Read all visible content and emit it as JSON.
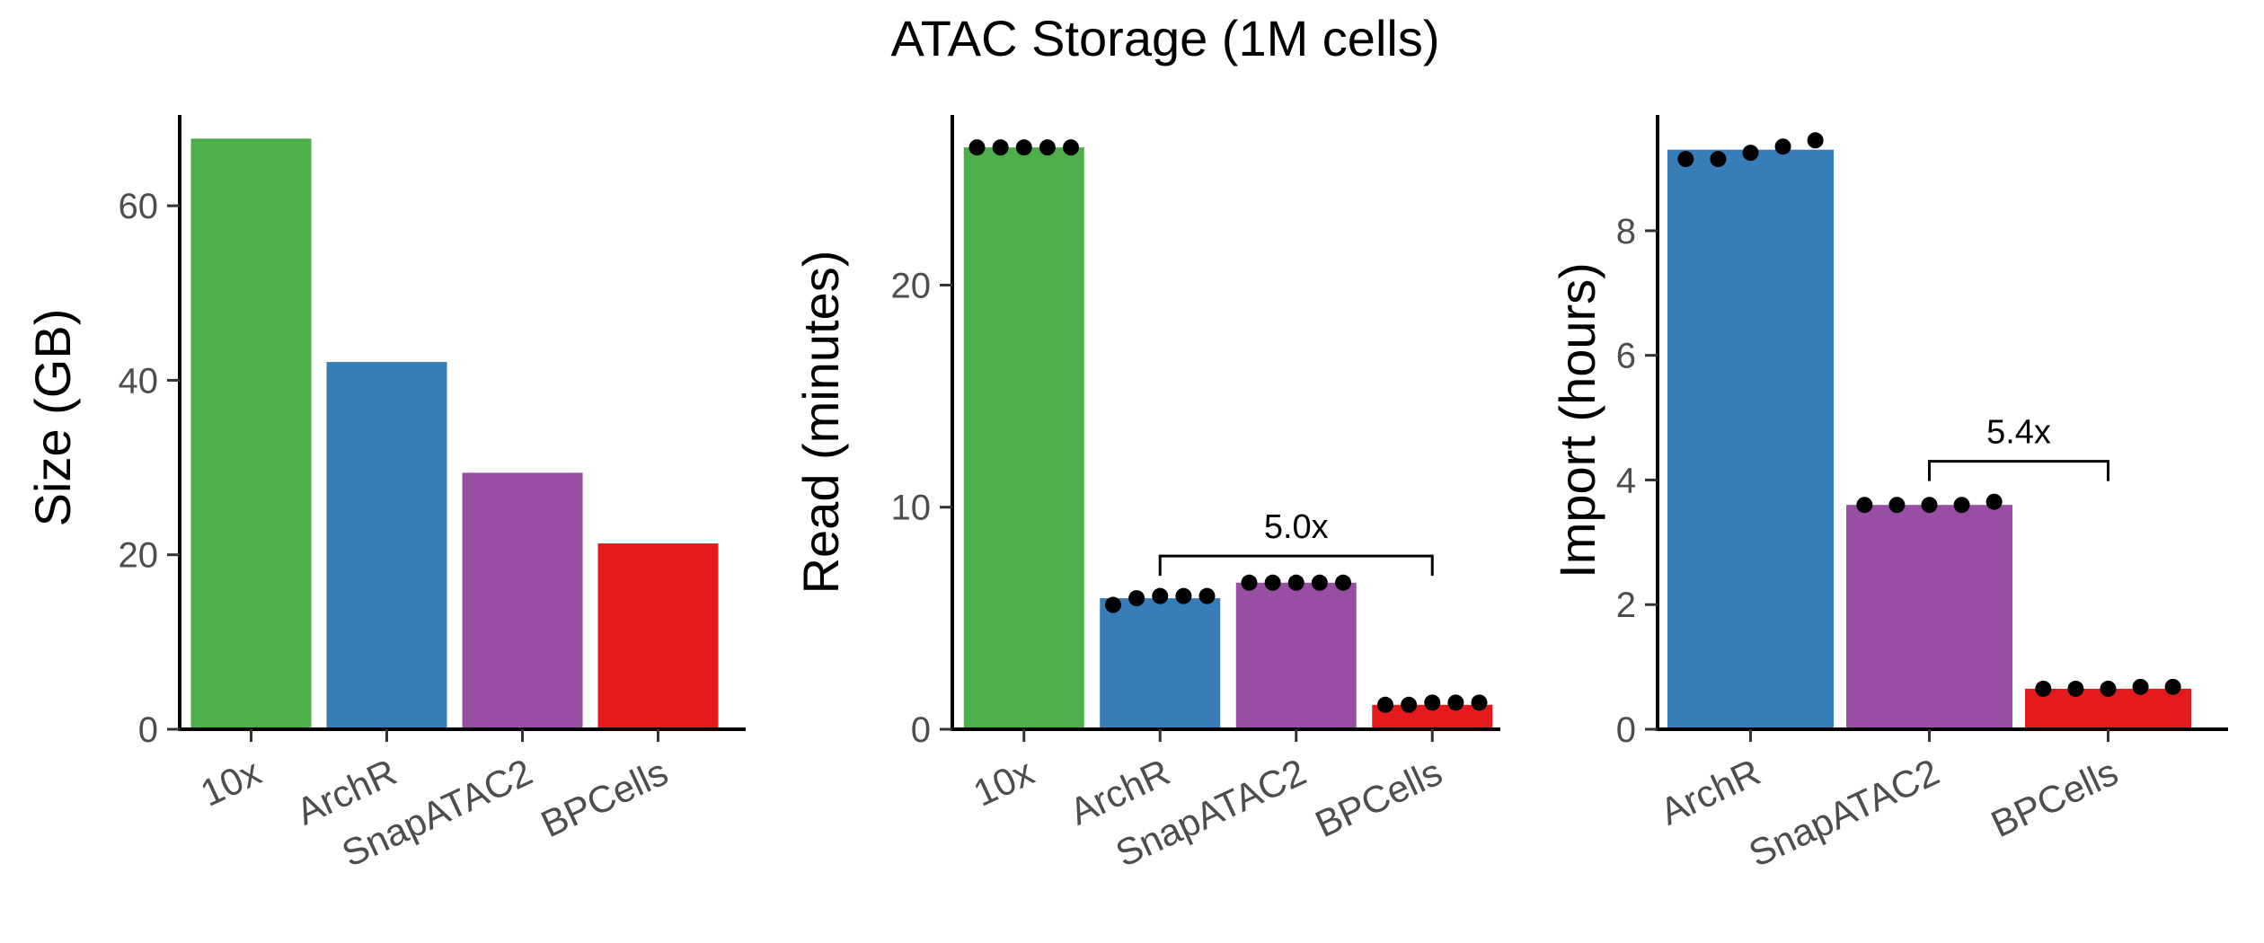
{
  "figure_title": "ATAC Storage (1M cells)",
  "colors": {
    "10x": "#4DAF4A",
    "ArchR": "#377EB8",
    "SnapATAC2": "#984EA3",
    "BPCells": "#E41A1C"
  },
  "chart_data": [
    {
      "type": "bar",
      "ylabel": "Size (GB)",
      "categories": [
        "10x",
        "ArchR",
        "SnapATAC2",
        "BPCells"
      ],
      "values": [
        67.7,
        42.1,
        29.4,
        21.3
      ],
      "ylim": [
        0,
        70
      ],
      "yticks": [
        0,
        20,
        40,
        60
      ],
      "points": []
    },
    {
      "type": "bar",
      "ylabel": "Read (minutes)",
      "categories": [
        "10x",
        "ArchR",
        "SnapATAC2",
        "BPCells"
      ],
      "values": [
        26.2,
        5.9,
        6.6,
        1.1
      ],
      "ylim": [
        0,
        27.5
      ],
      "yticks": [
        0,
        10,
        20
      ],
      "points": [
        [
          26.2,
          26.2,
          26.2,
          26.2,
          26.2
        ],
        [
          5.6,
          5.9,
          6.0,
          6.0,
          6.0
        ],
        [
          6.6,
          6.6,
          6.6,
          6.6,
          6.6
        ],
        [
          1.1,
          1.1,
          1.2,
          1.2,
          1.2
        ]
      ],
      "annotation": {
        "from": "ArchR",
        "to": "BPCells",
        "level": 7.8,
        "label": "5.0x"
      }
    },
    {
      "type": "bar",
      "ylabel": "Import (hours)",
      "categories": [
        "ArchR",
        "SnapATAC2",
        "BPCells"
      ],
      "values": [
        9.3,
        3.6,
        0.65
      ],
      "ylim": [
        0,
        9.8
      ],
      "yticks": [
        0,
        2,
        4,
        6,
        8
      ],
      "points": [
        [
          9.15,
          9.15,
          9.25,
          9.35,
          9.45
        ],
        [
          3.6,
          3.6,
          3.6,
          3.6,
          3.65
        ],
        [
          0.65,
          0.65,
          0.65,
          0.68,
          0.68
        ]
      ],
      "annotation": {
        "from": "SnapATAC2",
        "to": "BPCells",
        "level": 4.3,
        "label": "5.4x"
      }
    }
  ]
}
